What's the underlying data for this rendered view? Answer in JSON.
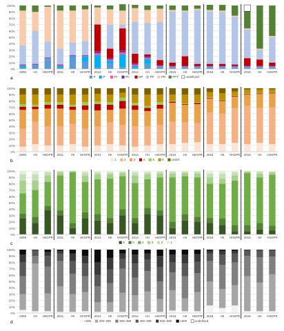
{
  "chart_data": [
    {
      "type": "bar",
      "stacked": true,
      "panel_label": "a",
      "categories": [
        "2008",
        "HII",
        "HIIGPR",
        "2011",
        "HII",
        "HIIGPR",
        "2013",
        "HII",
        "HIIGPR",
        "2014",
        "HII",
        "HIIGPR",
        "2015",
        "HII",
        "HIIGPR",
        "2018",
        "HII",
        "HIIGPR",
        "2019",
        "HII",
        "HIIGPR"
      ],
      "yticks": [
        "0%",
        "10%",
        "20%",
        "30%",
        "40%",
        "50%",
        "60%",
        "70%",
        "80%",
        "90%",
        "100%"
      ],
      "series": [
        {
          "name": "P",
          "color": "#5b9bd5",
          "values": [
            2,
            5,
            15,
            2,
            18,
            12,
            2,
            8,
            3,
            2,
            8,
            3,
            2,
            2,
            2,
            2,
            2,
            2,
            2,
            2,
            2
          ]
        },
        {
          "name": "P'",
          "color": "#00b0f0",
          "values": [
            3,
            1,
            1,
            3,
            2,
            8,
            20,
            5,
            20,
            3,
            8,
            1,
            1,
            1,
            1,
            1,
            1,
            1,
            1,
            1,
            1
          ]
        },
        {
          "name": "PI",
          "color": "#ff4fa3",
          "values": [
            1,
            1,
            1,
            1,
            1,
            1,
            3,
            2,
            3,
            2,
            2,
            1,
            1,
            1,
            1,
            1,
            1,
            1,
            1,
            1,
            1
          ]
        },
        {
          "name": "PII",
          "color": "#7030a0",
          "values": [
            1,
            1,
            1,
            1,
            1,
            1,
            3,
            2,
            3,
            2,
            2,
            1,
            1,
            1,
            1,
            1,
            1,
            1,
            1,
            1,
            1
          ]
        },
        {
          "name": "DP",
          "color": "#c00000",
          "values": [
            0,
            0,
            0,
            0,
            0,
            0,
            42,
            15,
            35,
            15,
            3,
            8,
            5,
            15,
            3,
            3,
            3,
            2,
            12,
            10,
            5
          ]
        },
        {
          "name": "PP",
          "color": "#b4c6e7",
          "values": [
            30,
            52,
            25,
            25,
            20,
            22,
            2,
            38,
            6,
            50,
            50,
            60,
            81,
            70,
            85,
            83,
            82,
            75,
            45,
            15,
            40
          ]
        },
        {
          "name": "PR",
          "color": "#f8cbad",
          "values": [
            55,
            30,
            55,
            60,
            50,
            50,
            25,
            24,
            22,
            22,
            20,
            21,
            2,
            2,
            2,
            2,
            2,
            2,
            2,
            2,
            2
          ]
        },
        {
          "name": "PFY",
          "color": "#548235",
          "values": [
            8,
            10,
            2,
            8,
            8,
            6,
            3,
            6,
            10,
            5,
            7,
            5,
            7,
            8,
            5,
            8,
            9,
            16,
            27,
            68,
            48
          ]
        },
        {
          "name": "undefined",
          "color": "#ffffff",
          "values": [
            0,
            0,
            0,
            0,
            0,
            0,
            0,
            0,
            0,
            0,
            0,
            0,
            0,
            0,
            0,
            0,
            0,
            0,
            10,
            0,
            0
          ]
        }
      ]
    },
    {
      "type": "bar",
      "stacked": true,
      "panel_label": "b",
      "categories": [
        "2008",
        "HII",
        "HIIGPR",
        "2011",
        "HII",
        "HIIGPR",
        "2013",
        "HII",
        "HIIGPR",
        "2014",
        "HII",
        "HIIGPR",
        "2015",
        "HII",
        "HIIGPR",
        "2018",
        "HII",
        "HIIGPR",
        "2019",
        "HII",
        "HIIGPR"
      ],
      "yticks": [
        "0%",
        "10%",
        "20%",
        "30%",
        "40%",
        "50%",
        "60%",
        "70%",
        "80%",
        "90%",
        "100%"
      ],
      "series": [
        {
          "name": "1",
          "color": "#fbe5d6",
          "values": [
            8,
            12,
            10,
            10,
            12,
            8,
            10,
            12,
            10,
            8,
            10,
            12,
            12,
            14,
            15,
            12,
            12,
            14,
            12,
            14,
            12
          ]
        },
        {
          "name": "2",
          "color": "#f4b183",
          "values": [
            28,
            35,
            30,
            30,
            32,
            28,
            30,
            34,
            32,
            32,
            30,
            30,
            35,
            32,
            30,
            50,
            48,
            55,
            60,
            55,
            58
          ]
        },
        {
          "name": "3",
          "color": "#e9a24a",
          "values": [
            30,
            20,
            28,
            28,
            22,
            30,
            25,
            20,
            26,
            26,
            24,
            26,
            30,
            28,
            30,
            22,
            20,
            18,
            18,
            22,
            22
          ]
        },
        {
          "name": "4",
          "color": "#c00000",
          "values": [
            5,
            4,
            6,
            6,
            5,
            7,
            10,
            8,
            12,
            7,
            5,
            6,
            2,
            1,
            2,
            1,
            1,
            1,
            1,
            1,
            1
          ]
        },
        {
          "name": "5",
          "color": "#92d050",
          "values": [
            4,
            3,
            4,
            4,
            3,
            5,
            4,
            4,
            5,
            4,
            3,
            4,
            1,
            1,
            1,
            1,
            1,
            1,
            1,
            1,
            1
          ]
        },
        {
          "name": "6",
          "color": "#bf9000",
          "values": [
            15,
            16,
            12,
            12,
            16,
            12,
            12,
            12,
            8,
            13,
            18,
            12,
            10,
            14,
            12,
            8,
            10,
            6,
            6,
            5,
            4
          ]
        },
        {
          "name": "undef",
          "color": "#7f6000",
          "values": [
            10,
            10,
            10,
            10,
            10,
            10,
            9,
            10,
            7,
            10,
            10,
            10,
            10,
            10,
            10,
            6,
            8,
            5,
            2,
            2,
            2
          ]
        }
      ]
    },
    {
      "type": "bar",
      "stacked": true,
      "panel_label": "c",
      "categories": [
        "2008",
        "HII",
        "HIIGPR",
        "2011",
        "HII",
        "HIIGPR",
        "2013",
        "HII",
        "HIIGPR",
        "2014",
        "HII",
        "HIIGPR",
        "2015",
        "HII",
        "HIIGPR",
        "2018",
        "HII",
        "HIIGPR",
        "2019",
        "HII",
        "HIIGPR"
      ],
      "yticks": [
        "0%",
        "10%",
        "20%",
        "30%",
        "40%",
        "50%",
        "60%",
        "70%",
        "80%",
        "90%",
        "100%"
      ],
      "series": [
        {
          "name": "6",
          "color": "#375623",
          "values": [
            25,
            18,
            38,
            30,
            10,
            25,
            22,
            18,
            30,
            18,
            32,
            30,
            10,
            22,
            20,
            18,
            15,
            5,
            5,
            8,
            6
          ]
        },
        {
          "name": "5",
          "color": "#548235",
          "values": [
            8,
            10,
            7,
            8,
            8,
            10,
            10,
            8,
            10,
            8,
            10,
            8,
            10,
            10,
            8,
            8,
            10,
            10,
            10,
            10,
            8
          ]
        },
        {
          "name": "4",
          "color": "#70ad47",
          "values": [
            32,
            42,
            38,
            55,
            80,
            48,
            55,
            62,
            52,
            55,
            45,
            52,
            70,
            60,
            62,
            54,
            55,
            70,
            82,
            72,
            80
          ]
        },
        {
          "name": "3",
          "color": "#a9d18e",
          "values": [
            20,
            15,
            10,
            5,
            2,
            10,
            8,
            7,
            5,
            12,
            8,
            6,
            6,
            5,
            6,
            10,
            8,
            8,
            2,
            6,
            4
          ]
        },
        {
          "name": "2",
          "color": "#c5e0b4",
          "values": [
            10,
            10,
            5,
            2,
            0,
            5,
            3,
            3,
            2,
            5,
            3,
            3,
            3,
            2,
            3,
            6,
            8,
            5,
            1,
            3,
            1
          ]
        },
        {
          "name": "1",
          "color": "#e2efda",
          "values": [
            5,
            5,
            2,
            0,
            0,
            2,
            2,
            2,
            1,
            2,
            2,
            1,
            1,
            1,
            1,
            4,
            4,
            2,
            0,
            1,
            1
          ]
        }
      ]
    },
    {
      "type": "bar",
      "stacked": true,
      "panel_label": "d",
      "categories": [
        "2008",
        "HII",
        "HIIGPR",
        "2011",
        "HII",
        "HIIGPR",
        "2013",
        "HII",
        "HIIGPR",
        "2014",
        "HII",
        "HIIGPR",
        "2015",
        "HII",
        "HIIGPR",
        "2018",
        "HII",
        "HIIGPR",
        "2019",
        "HII",
        "HIIGPR"
      ],
      "yticks": [
        "0%",
        "10%",
        "20%",
        "30%",
        "40%",
        "50%",
        "60%",
        "70%",
        "80%",
        "90%",
        "100%"
      ],
      "series": [
        {
          "name": "<200",
          "color": "#f2f2f2",
          "values": [
            5,
            3,
            3,
            2,
            2,
            3,
            2,
            2,
            2,
            3,
            2,
            2,
            4,
            3,
            3,
            12,
            8,
            12,
            3,
            3,
            3
          ]
        },
        {
          "name": "200–299",
          "color": "#a6a6a6",
          "values": [
            25,
            75,
            28,
            40,
            28,
            30,
            15,
            15,
            30,
            25,
            32,
            20,
            32,
            20,
            30,
            38,
            30,
            32,
            55,
            45,
            58
          ]
        },
        {
          "name": "300–399",
          "color": "#808080",
          "values": [
            28,
            12,
            42,
            40,
            32,
            25,
            25,
            30,
            38,
            28,
            32,
            28,
            28,
            35,
            30,
            32,
            38,
            36,
            32,
            40,
            28
          ]
        },
        {
          "name": "400–499",
          "color": "#595959",
          "values": [
            22,
            8,
            17,
            12,
            20,
            20,
            18,
            22,
            15,
            22,
            18,
            22,
            16,
            20,
            18,
            12,
            16,
            14,
            8,
            10,
            9
          ]
        },
        {
          "name": "500–599",
          "color": "#3a3a3a",
          "values": [
            12,
            2,
            6,
            4,
            12,
            12,
            20,
            18,
            9,
            14,
            10,
            18,
            12,
            14,
            12,
            4,
            6,
            4,
            2,
            2,
            2
          ]
        },
        {
          "name": "≥600",
          "color": "#0d0d0d",
          "values": [
            8,
            0,
            4,
            2,
            6,
            10,
            20,
            13,
            6,
            8,
            6,
            10,
            8,
            8,
            7,
            2,
            2,
            2,
            0,
            0,
            0
          ]
        },
        {
          "name": "undefined",
          "color": "#ffffff",
          "values": [
            0,
            0,
            0,
            0,
            0,
            0,
            0,
            0,
            0,
            0,
            0,
            0,
            0,
            0,
            0,
            0,
            0,
            0,
            0,
            0,
            0
          ]
        }
      ]
    }
  ],
  "panel_labels": [
    "a",
    "b",
    "c",
    "d"
  ]
}
